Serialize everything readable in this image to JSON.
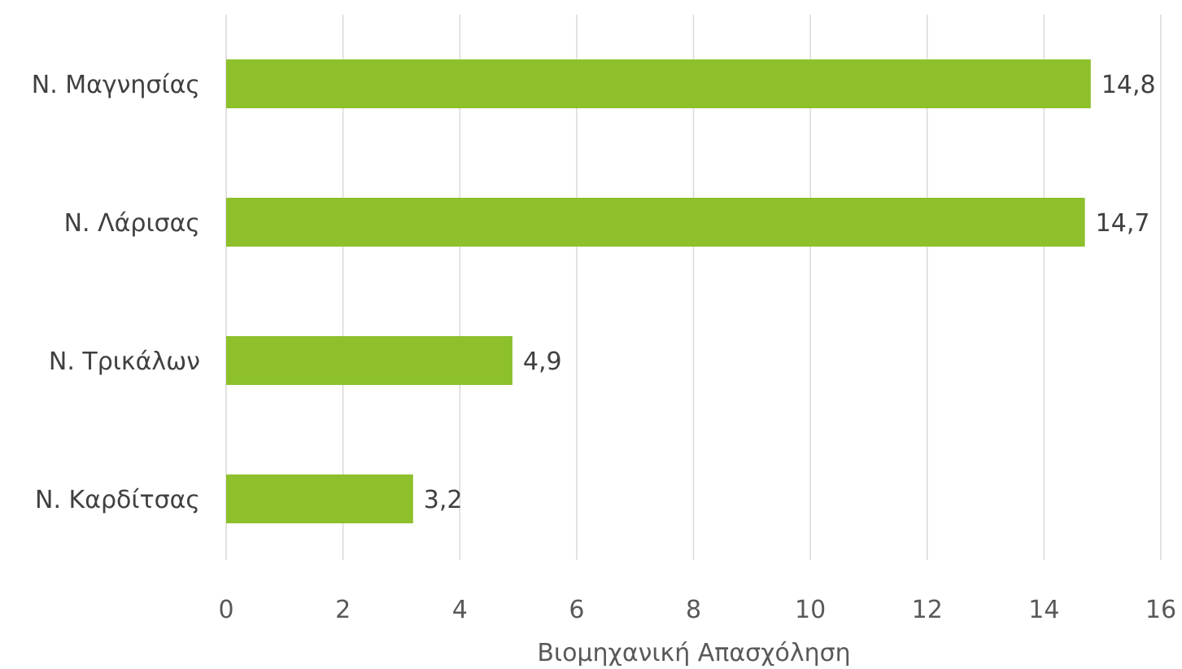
{
  "chart_data": {
    "type": "bar",
    "orientation": "horizontal",
    "categories": [
      "Ν. Μαγνησίας",
      "Ν. Λάρισας",
      "Ν. Τρικάλων",
      "Ν. Καρδίτσας"
    ],
    "values": [
      14.8,
      14.7,
      4.9,
      3.2
    ],
    "value_labels": [
      "14,8",
      "14,7",
      "4,9",
      "3,2"
    ],
    "title": "",
    "xlabel": "Βιομηχανική Απασχόληση",
    "ylabel": "",
    "xlim": [
      0,
      16
    ],
    "xticks": [
      0,
      2,
      4,
      6,
      8,
      10,
      12,
      14,
      16
    ],
    "xtick_labels": [
      "0",
      "2",
      "4",
      "6",
      "8",
      "10",
      "12",
      "14",
      "16"
    ],
    "grid": "vertical",
    "legend": "none"
  },
  "colors": {
    "bar": "#8dc02b",
    "grid": "#d9d9d9",
    "text": "#404040",
    "axis_text": "#595959"
  }
}
